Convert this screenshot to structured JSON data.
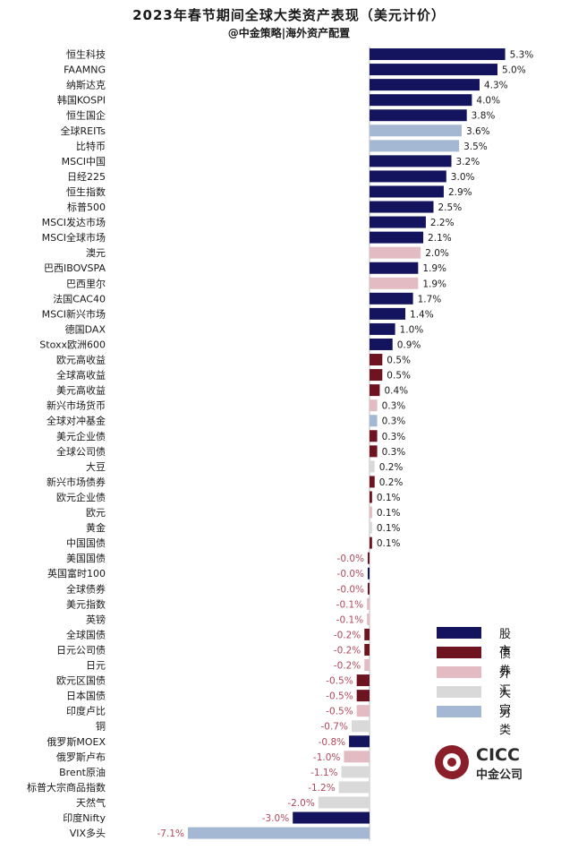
{
  "title": "2023年春节期间全球大类资产表现（美元计价）",
  "subtitle": "@中金策略|海外资产配置",
  "colors": {
    "股市": "#14145e",
    "债券": "#6e1420",
    "外汇": "#e3bcc3",
    "大宗": "#d9d9d9",
    "另类": "#a4b8d3"
  },
  "legend": [
    {
      "label": "股市",
      "key": "股市"
    },
    {
      "label": "债券",
      "key": "债券"
    },
    {
      "label": "外汇",
      "key": "外汇"
    },
    {
      "label": "大宗",
      "key": "大宗"
    },
    {
      "label": "另类",
      "key": "另类"
    }
  ],
  "logo": {
    "en": "CICC",
    "cn": "中金公司"
  },
  "chart_data": {
    "type": "bar",
    "orientation": "horizontal",
    "title": "2023年春节期间全球大类资产表现（美元计价）",
    "xlim": [
      -7.1,
      5.3
    ],
    "categories": [
      "恒生科技",
      "FAAMNG",
      "纳斯达克",
      "韩国KOSPI",
      "恒生国企",
      "全球REITs",
      "比特币",
      "MSCI中国",
      "日经225",
      "恒生指数",
      "标普500",
      "MSCI发达市场",
      "MSCI全球市场",
      "澳元",
      "巴西IBOVSPA",
      "巴西里尔",
      "法国CAC40",
      "MSCI新兴市场",
      "德国DAX",
      "Stoxx欧洲600",
      "欧元高收益",
      "全球高收益",
      "美元高收益",
      "新兴市场货币",
      "全球对冲基金",
      "美元企业债",
      "全球公司债",
      "大豆",
      "新兴市场债券",
      "欧元企业债",
      "欧元",
      "黄金",
      "中国国债",
      "美国国债",
      "英国富时100",
      "全球债券",
      "美元指数",
      "英镑",
      "全球国债",
      "日元公司债",
      "日元",
      "欧元区国债",
      "日本国债",
      "印度卢比",
      "铜",
      "俄罗斯MOEX",
      "俄罗斯卢布",
      "Brent原油",
      "标普大宗商品指数",
      "天然气",
      "印度Nifty",
      "VIX多头"
    ],
    "values": [
      5.3,
      5.0,
      4.3,
      4.0,
      3.8,
      3.6,
      3.5,
      3.2,
      3.0,
      2.9,
      2.5,
      2.2,
      2.1,
      2.0,
      1.9,
      1.9,
      1.7,
      1.4,
      1.0,
      0.9,
      0.5,
      0.5,
      0.4,
      0.3,
      0.3,
      0.3,
      0.3,
      0.2,
      0.2,
      0.1,
      0.1,
      0.1,
      0.1,
      -0.02,
      -0.03,
      -0.03,
      -0.1,
      -0.1,
      -0.2,
      -0.2,
      -0.2,
      -0.5,
      -0.5,
      -0.5,
      -0.7,
      -0.8,
      -1.0,
      -1.1,
      -1.2,
      -2.0,
      -3.0,
      -7.1
    ],
    "labels": [
      "5.3%",
      "5.0%",
      "4.3%",
      "4.0%",
      "3.8%",
      "3.6%",
      "3.5%",
      "3.2%",
      "3.0%",
      "2.9%",
      "2.5%",
      "2.2%",
      "2.1%",
      "2.0%",
      "1.9%",
      "1.9%",
      "1.7%",
      "1.4%",
      "1.0%",
      "0.9%",
      "0.5%",
      "0.5%",
      "0.4%",
      "0.3%",
      "0.3%",
      "0.3%",
      "0.3%",
      "0.2%",
      "0.2%",
      "0.1%",
      "0.1%",
      "0.1%",
      "0.1%",
      "-0.0%",
      "-0.0%",
      "-0.0%",
      "-0.1%",
      "-0.1%",
      "-0.2%",
      "-0.2%",
      "-0.2%",
      "-0.5%",
      "-0.5%",
      "-0.5%",
      "-0.7%",
      "-0.8%",
      "-1.0%",
      "-1.1%",
      "-1.2%",
      "-2.0%",
      "-3.0%",
      "-7.1%"
    ],
    "asset_class": [
      "股市",
      "股市",
      "股市",
      "股市",
      "股市",
      "另类",
      "另类",
      "股市",
      "股市",
      "股市",
      "股市",
      "股市",
      "股市",
      "外汇",
      "股市",
      "外汇",
      "股市",
      "股市",
      "股市",
      "股市",
      "债券",
      "债券",
      "债券",
      "外汇",
      "另类",
      "债券",
      "债券",
      "大宗",
      "债券",
      "债券",
      "外汇",
      "大宗",
      "债券",
      "债券",
      "股市",
      "债券",
      "外汇",
      "外汇",
      "债券",
      "债券",
      "外汇",
      "债券",
      "债券",
      "外汇",
      "大宗",
      "股市",
      "外汇",
      "大宗",
      "大宗",
      "大宗",
      "股市",
      "另类"
    ]
  }
}
